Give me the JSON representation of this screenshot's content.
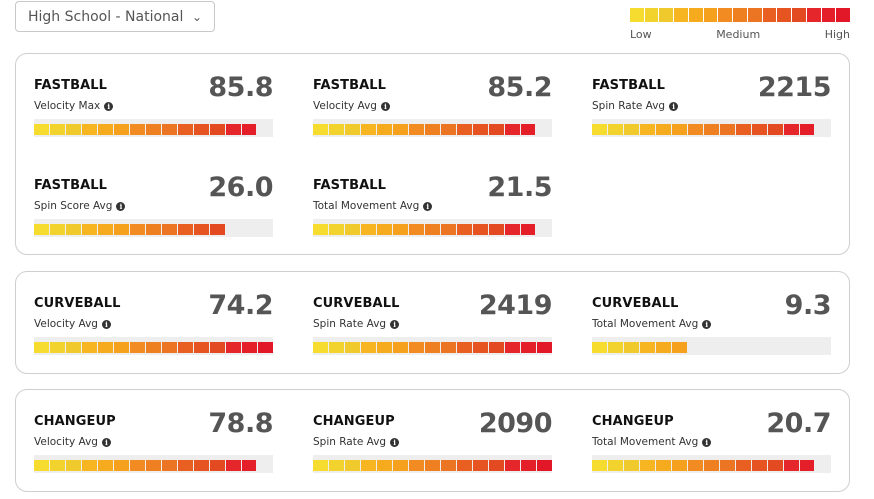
{
  "filter": {
    "selected": "High School - National"
  },
  "legend": {
    "colors": [
      "#f5dc2e",
      "#f2d32d",
      "#f0ca2c",
      "#f7b521",
      "#f6ab1f",
      "#f5a11d",
      "#f28b22",
      "#ef8022",
      "#ec7523",
      "#e95f22",
      "#e65422",
      "#e34a22",
      "#e5262b",
      "#e41f2a",
      "#e21829"
    ],
    "low": "Low",
    "medium": "Medium",
    "high": "High"
  },
  "groups": [
    {
      "id": "fastball",
      "metrics": [
        {
          "pitch": "FASTBALL",
          "label": "Velocity Max",
          "value": "85.8",
          "level": 0.93
        },
        {
          "pitch": "FASTBALL",
          "label": "Velocity Avg",
          "value": "85.2",
          "level": 0.93
        },
        {
          "pitch": "FASTBALL",
          "label": "Spin Rate Avg",
          "value": "2215",
          "level": 0.93
        },
        {
          "pitch": "FASTBALL",
          "label": "Spin Score Avg",
          "value": "26.0",
          "level": 0.8
        },
        {
          "pitch": "FASTBALL",
          "label": "Total Movement Avg",
          "value": "21.5",
          "level": 0.93
        }
      ]
    },
    {
      "id": "curveball",
      "metrics": [
        {
          "pitch": "CURVEBALL",
          "label": "Velocity Avg",
          "value": "74.2",
          "level": 1.0
        },
        {
          "pitch": "CURVEBALL",
          "label": "Spin Rate Avg",
          "value": "2419",
          "level": 1.0
        },
        {
          "pitch": "CURVEBALL",
          "label": "Total Movement Avg",
          "value": "9.3",
          "level": 0.4
        }
      ]
    },
    {
      "id": "changeup",
      "metrics": [
        {
          "pitch": "CHANGEUP",
          "label": "Velocity Avg",
          "value": "78.8",
          "level": 0.93
        },
        {
          "pitch": "CHANGEUP",
          "label": "Spin Rate Avg",
          "value": "2090",
          "level": 1.0
        },
        {
          "pitch": "CHANGEUP",
          "label": "Total Movement Avg",
          "value": "20.7",
          "level": 0.93
        }
      ]
    }
  ]
}
